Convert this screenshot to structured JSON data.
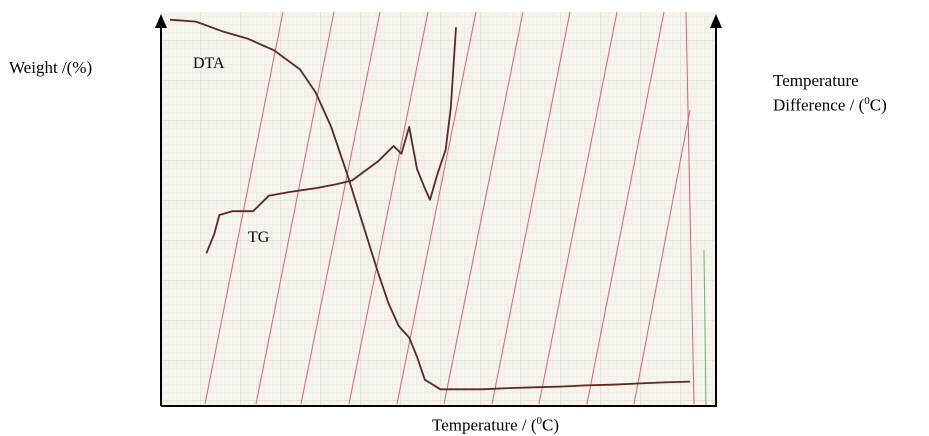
{
  "labels": {
    "y_left": "Weight /(%)",
    "y_right_line1": "Temperature",
    "y_right_line2": "Difference / (",
    "y_right_sup": "0",
    "y_right_end": "C)",
    "x_axis": "Temperature / (",
    "x_sup": "0",
    "x_end": "C)",
    "curve_dta": "DTA",
    "curve_tg": "TG"
  },
  "colors": {
    "paper": "#f4f3ec",
    "grid_minor": "#e2e2da",
    "grid_major": "#cfcfc5",
    "trace": "#5a2a22",
    "ref_lines": "#e0606a",
    "axes": "#000000"
  },
  "chart_data": {
    "type": "line",
    "title": "",
    "xlabel": "Temperature / (°C)",
    "ylabel": "Weight /(%)",
    "y2label": "Temperature Difference / (°C)",
    "tick_labels_shown": false,
    "grid": true,
    "xlim": [
      0,
      100
    ],
    "ylim": [
      0,
      100
    ],
    "series": [
      {
        "name": "DTA",
        "x": [
          0,
          5,
          10,
          15,
          20,
          25,
          28,
          31,
          34,
          37,
          40,
          42,
          44,
          46,
          47.5,
          49,
          52,
          55,
          60,
          65,
          70,
          75,
          80,
          85,
          90,
          95,
          100
        ],
        "y": [
          98,
          97.5,
          95,
          93,
          90,
          85,
          79,
          70,
          58,
          45,
          32,
          24,
          18,
          15,
          10,
          4,
          1.5,
          1.5,
          1.5,
          1.8,
          2.0,
          2.2,
          2.5,
          2.7,
          3.0,
          3.3,
          3.5
        ]
      },
      {
        "name": "TG",
        "x": [
          7,
          8.5,
          9.5,
          12,
          16,
          19,
          23,
          28,
          32,
          35,
          37,
          40,
          43,
          44.5,
          46,
          47.5,
          49,
          50,
          51.5,
          53,
          54,
          55
        ],
        "y": [
          37,
          42,
          47,
          48,
          48,
          52,
          53,
          54,
          55,
          56,
          58,
          61,
          65,
          63,
          70,
          59,
          54,
          51,
          58,
          64,
          75,
          96
        ]
      }
    ]
  }
}
